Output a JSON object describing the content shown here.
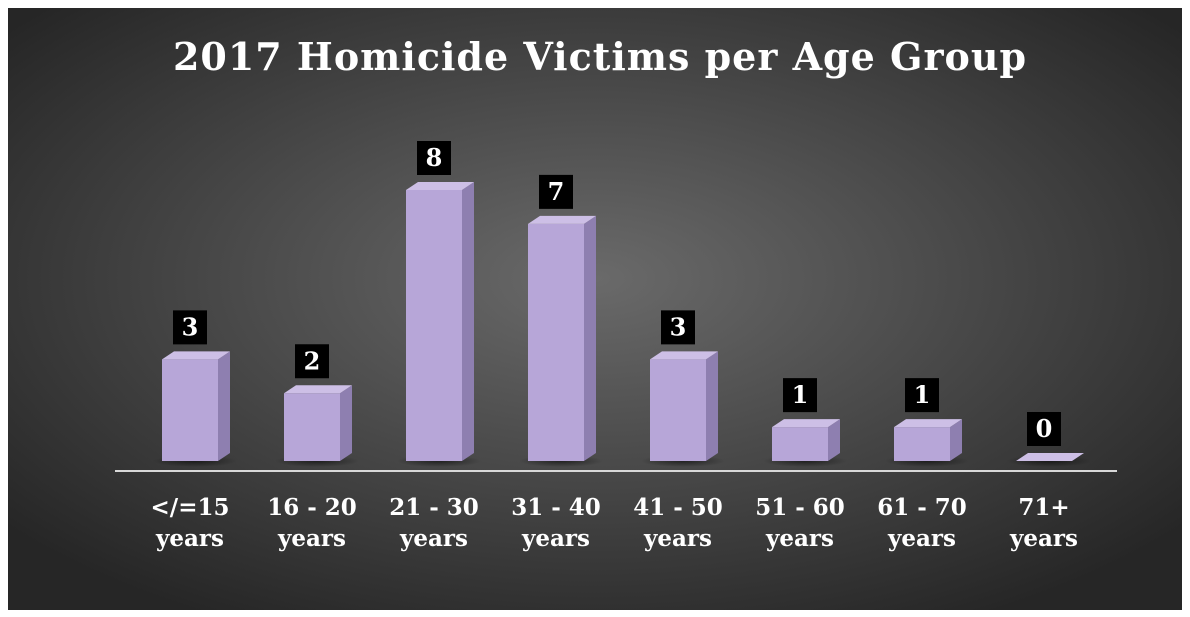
{
  "chart_data": {
    "type": "bar",
    "title": "2017 Homicide Victims per Age Group",
    "categories": [
      "</=15 years",
      "16 - 20 years",
      "21 - 30 years",
      "31 - 40 years",
      "41 - 50 years",
      "51 - 60 years",
      "61 - 70 years",
      "71+ years"
    ],
    "values": [
      3,
      2,
      8,
      7,
      3,
      1,
      1,
      0
    ],
    "color": "#b7a6d8"
  }
}
